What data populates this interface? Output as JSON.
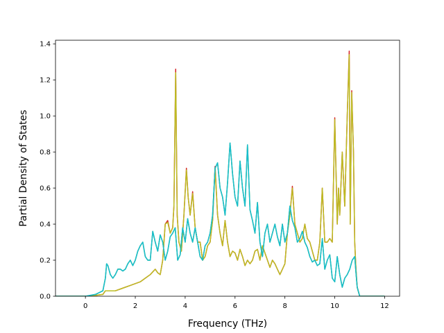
{
  "chart_data": {
    "type": "line",
    "title": "",
    "xlabel": "Frequency (THz)",
    "ylabel": "Partial Density of States",
    "xlim": [
      -1.2,
      12.6
    ],
    "ylim": [
      0.0,
      1.42
    ],
    "xticks": [
      0,
      2,
      4,
      6,
      8,
      10,
      12
    ],
    "yticks": [
      0.0,
      0.2,
      0.4,
      0.6,
      0.8,
      1.0,
      1.2,
      1.4
    ],
    "xtick_labels": [
      "0",
      "2",
      "4",
      "6",
      "8",
      "10",
      "12"
    ],
    "ytick_labels": [
      "0.0",
      "0.2",
      "0.4",
      "0.6",
      "0.8",
      "1.0",
      "1.2",
      "1.4"
    ],
    "grid": false,
    "legend": "none",
    "series": [
      {
        "color": "#d62728",
        "x": [
          -1.2,
          -0.5,
          0.0,
          0.4,
          0.7,
          0.8,
          0.9,
          1.0,
          1.2,
          1.4,
          1.6,
          1.8,
          2.0,
          2.2,
          2.4,
          2.6,
          2.8,
          2.9,
          3.0,
          3.1,
          3.2,
          3.3,
          3.4,
          3.5,
          3.55,
          3.62,
          3.68,
          3.75,
          3.85,
          3.95,
          4.05,
          4.12,
          4.2,
          4.3,
          4.4,
          4.5,
          4.6,
          4.7,
          4.8,
          4.9,
          5.0,
          5.1,
          5.2,
          5.3,
          5.4,
          5.5,
          5.6,
          5.7,
          5.8,
          5.9,
          6.0,
          6.1,
          6.2,
          6.3,
          6.4,
          6.5,
          6.6,
          6.7,
          6.8,
          6.9,
          7.0,
          7.1,
          7.2,
          7.3,
          7.4,
          7.5,
          7.6,
          7.7,
          7.8,
          7.9,
          8.0,
          8.1,
          8.2,
          8.3,
          8.4,
          8.5,
          8.6,
          8.7,
          8.8,
          8.9,
          9.0,
          9.1,
          9.2,
          9.3,
          9.4,
          9.5,
          9.6,
          9.7,
          9.8,
          9.9,
          10.0,
          10.1,
          10.15,
          10.2,
          10.3,
          10.4,
          10.5,
          10.58,
          10.62,
          10.68,
          10.75,
          10.8,
          10.85,
          10.9,
          11.0,
          12.0
        ],
        "values": [
          0.0,
          0.0,
          0.0,
          0.005,
          0.01,
          0.03,
          0.03,
          0.03,
          0.03,
          0.04,
          0.05,
          0.06,
          0.07,
          0.08,
          0.1,
          0.12,
          0.15,
          0.13,
          0.12,
          0.2,
          0.4,
          0.42,
          0.35,
          0.38,
          0.5,
          1.26,
          0.45,
          0.3,
          0.25,
          0.45,
          0.71,
          0.55,
          0.45,
          0.58,
          0.38,
          0.3,
          0.3,
          0.2,
          0.22,
          0.28,
          0.3,
          0.42,
          0.72,
          0.45,
          0.35,
          0.28,
          0.42,
          0.3,
          0.22,
          0.25,
          0.24,
          0.2,
          0.26,
          0.22,
          0.17,
          0.2,
          0.18,
          0.2,
          0.25,
          0.26,
          0.2,
          0.28,
          0.24,
          0.2,
          0.16,
          0.2,
          0.18,
          0.15,
          0.12,
          0.15,
          0.18,
          0.35,
          0.45,
          0.61,
          0.4,
          0.35,
          0.3,
          0.32,
          0.4,
          0.32,
          0.3,
          0.25,
          0.2,
          0.2,
          0.3,
          0.6,
          0.3,
          0.3,
          0.32,
          0.3,
          0.99,
          0.4,
          0.6,
          0.45,
          0.8,
          0.5,
          1.0,
          1.36,
          0.4,
          1.14,
          0.8,
          0.3,
          0.15,
          0.05,
          0.0,
          0.0
        ]
      },
      {
        "color": "#bcbd22",
        "x": [
          -1.2,
          -0.5,
          0.0,
          0.4,
          0.7,
          0.8,
          0.9,
          1.0,
          1.2,
          1.4,
          1.6,
          1.8,
          2.0,
          2.2,
          2.4,
          2.6,
          2.8,
          2.9,
          3.0,
          3.1,
          3.2,
          3.3,
          3.4,
          3.5,
          3.55,
          3.62,
          3.68,
          3.75,
          3.85,
          3.95,
          4.05,
          4.12,
          4.2,
          4.3,
          4.4,
          4.5,
          4.6,
          4.7,
          4.8,
          4.9,
          5.0,
          5.1,
          5.2,
          5.3,
          5.4,
          5.5,
          5.6,
          5.7,
          5.8,
          5.9,
          6.0,
          6.1,
          6.2,
          6.3,
          6.4,
          6.5,
          6.6,
          6.7,
          6.8,
          6.9,
          7.0,
          7.1,
          7.2,
          7.3,
          7.4,
          7.5,
          7.6,
          7.7,
          7.8,
          7.9,
          8.0,
          8.1,
          8.2,
          8.3,
          8.4,
          8.5,
          8.6,
          8.7,
          8.8,
          8.9,
          9.0,
          9.1,
          9.2,
          9.3,
          9.4,
          9.5,
          9.6,
          9.7,
          9.8,
          9.9,
          10.0,
          10.1,
          10.15,
          10.2,
          10.3,
          10.4,
          10.5,
          10.58,
          10.62,
          10.68,
          10.75,
          10.8,
          10.85,
          10.9,
          11.0,
          12.0
        ],
        "values": [
          0.0,
          0.0,
          0.0,
          0.005,
          0.01,
          0.03,
          0.03,
          0.03,
          0.03,
          0.04,
          0.05,
          0.06,
          0.07,
          0.08,
          0.1,
          0.12,
          0.15,
          0.13,
          0.12,
          0.2,
          0.4,
          0.41,
          0.35,
          0.38,
          0.5,
          1.24,
          0.45,
          0.3,
          0.25,
          0.45,
          0.7,
          0.55,
          0.45,
          0.57,
          0.38,
          0.3,
          0.3,
          0.2,
          0.22,
          0.28,
          0.3,
          0.42,
          0.71,
          0.45,
          0.35,
          0.28,
          0.42,
          0.3,
          0.22,
          0.25,
          0.24,
          0.2,
          0.26,
          0.22,
          0.17,
          0.2,
          0.18,
          0.2,
          0.25,
          0.26,
          0.2,
          0.28,
          0.24,
          0.2,
          0.16,
          0.2,
          0.18,
          0.15,
          0.12,
          0.15,
          0.18,
          0.35,
          0.45,
          0.6,
          0.4,
          0.35,
          0.3,
          0.32,
          0.4,
          0.32,
          0.3,
          0.25,
          0.2,
          0.2,
          0.3,
          0.6,
          0.3,
          0.3,
          0.32,
          0.3,
          0.98,
          0.4,
          0.6,
          0.45,
          0.8,
          0.5,
          1.0,
          1.34,
          0.4,
          1.13,
          0.8,
          0.3,
          0.15,
          0.05,
          0.0,
          0.0
        ]
      },
      {
        "color": "#2ca02c",
        "x": [
          -1.2,
          -0.5,
          0.0,
          0.4,
          0.7,
          0.8,
          0.85,
          0.9,
          1.0,
          1.1,
          1.2,
          1.3,
          1.4,
          1.5,
          1.6,
          1.7,
          1.8,
          1.9,
          2.0,
          2.1,
          2.2,
          2.3,
          2.4,
          2.5,
          2.6,
          2.7,
          2.8,
          2.9,
          3.0,
          3.1,
          3.2,
          3.3,
          3.4,
          3.5,
          3.6,
          3.7,
          3.8,
          3.9,
          4.0,
          4.1,
          4.2,
          4.3,
          4.4,
          4.5,
          4.6,
          4.7,
          4.8,
          4.9,
          5.0,
          5.1,
          5.2,
          5.3,
          5.4,
          5.5,
          5.6,
          5.7,
          5.8,
          5.9,
          6.0,
          6.1,
          6.2,
          6.3,
          6.4,
          6.5,
          6.6,
          6.7,
          6.8,
          6.9,
          7.0,
          7.1,
          7.2,
          7.3,
          7.4,
          7.5,
          7.6,
          7.7,
          7.8,
          7.9,
          8.0,
          8.1,
          8.2,
          8.3,
          8.4,
          8.5,
          8.6,
          8.7,
          8.8,
          8.9,
          9.0,
          9.1,
          9.2,
          9.3,
          9.4,
          9.5,
          9.6,
          9.7,
          9.8,
          9.9,
          10.0,
          10.1,
          10.2,
          10.3,
          10.4,
          10.5,
          10.6,
          10.7,
          10.8,
          10.85,
          10.9,
          11.0,
          12.0
        ],
        "values": [
          0.0,
          0.0,
          0.0,
          0.01,
          0.03,
          0.1,
          0.18,
          0.17,
          0.12,
          0.1,
          0.12,
          0.15,
          0.15,
          0.14,
          0.15,
          0.18,
          0.2,
          0.17,
          0.2,
          0.25,
          0.28,
          0.3,
          0.22,
          0.2,
          0.2,
          0.36,
          0.3,
          0.25,
          0.34,
          0.3,
          0.2,
          0.25,
          0.33,
          0.35,
          0.38,
          0.2,
          0.23,
          0.38,
          0.3,
          0.43,
          0.35,
          0.3,
          0.38,
          0.3,
          0.22,
          0.2,
          0.28,
          0.3,
          0.35,
          0.45,
          0.71,
          0.74,
          0.6,
          0.55,
          0.45,
          0.63,
          0.85,
          0.68,
          0.55,
          0.5,
          0.75,
          0.6,
          0.5,
          0.84,
          0.48,
          0.42,
          0.35,
          0.52,
          0.3,
          0.22,
          0.35,
          0.4,
          0.3,
          0.35,
          0.4,
          0.33,
          0.28,
          0.4,
          0.3,
          0.35,
          0.5,
          0.42,
          0.38,
          0.3,
          0.32,
          0.36,
          0.3,
          0.27,
          0.22,
          0.19,
          0.2,
          0.17,
          0.18,
          0.32,
          0.15,
          0.2,
          0.23,
          0.1,
          0.08,
          0.22,
          0.12,
          0.05,
          0.1,
          0.12,
          0.15,
          0.2,
          0.22,
          0.13,
          0.05,
          0.0,
          0.0
        ]
      },
      {
        "color": "#17becf",
        "x": [
          -1.2,
          -0.5,
          0.0,
          0.4,
          0.7,
          0.8,
          0.85,
          0.9,
          1.0,
          1.1,
          1.2,
          1.3,
          1.4,
          1.5,
          1.6,
          1.7,
          1.8,
          1.9,
          2.0,
          2.1,
          2.2,
          2.3,
          2.4,
          2.5,
          2.6,
          2.7,
          2.8,
          2.9,
          3.0,
          3.1,
          3.2,
          3.3,
          3.4,
          3.5,
          3.6,
          3.7,
          3.8,
          3.9,
          4.0,
          4.1,
          4.2,
          4.3,
          4.4,
          4.5,
          4.6,
          4.7,
          4.8,
          4.9,
          5.0,
          5.1,
          5.2,
          5.3,
          5.4,
          5.5,
          5.6,
          5.7,
          5.8,
          5.9,
          6.0,
          6.1,
          6.2,
          6.3,
          6.4,
          6.5,
          6.6,
          6.7,
          6.8,
          6.9,
          7.0,
          7.1,
          7.2,
          7.3,
          7.4,
          7.5,
          7.6,
          7.7,
          7.8,
          7.9,
          8.0,
          8.1,
          8.2,
          8.3,
          8.4,
          8.5,
          8.6,
          8.7,
          8.8,
          8.9,
          9.0,
          9.1,
          9.2,
          9.3,
          9.4,
          9.5,
          9.6,
          9.7,
          9.8,
          9.9,
          10.0,
          10.1,
          10.2,
          10.3,
          10.4,
          10.5,
          10.6,
          10.7,
          10.8,
          10.85,
          10.9,
          11.0,
          12.0
        ],
        "values": [
          0.0,
          0.0,
          0.0,
          0.01,
          0.03,
          0.1,
          0.18,
          0.17,
          0.12,
          0.1,
          0.12,
          0.15,
          0.15,
          0.14,
          0.15,
          0.18,
          0.2,
          0.17,
          0.2,
          0.25,
          0.28,
          0.3,
          0.22,
          0.2,
          0.2,
          0.36,
          0.3,
          0.25,
          0.34,
          0.3,
          0.2,
          0.25,
          0.33,
          0.35,
          0.38,
          0.2,
          0.23,
          0.38,
          0.3,
          0.43,
          0.35,
          0.3,
          0.38,
          0.3,
          0.22,
          0.2,
          0.28,
          0.3,
          0.35,
          0.45,
          0.71,
          0.74,
          0.6,
          0.55,
          0.45,
          0.63,
          0.85,
          0.68,
          0.55,
          0.5,
          0.75,
          0.6,
          0.5,
          0.84,
          0.48,
          0.42,
          0.35,
          0.52,
          0.3,
          0.22,
          0.35,
          0.4,
          0.3,
          0.35,
          0.4,
          0.33,
          0.28,
          0.4,
          0.3,
          0.35,
          0.5,
          0.42,
          0.38,
          0.3,
          0.32,
          0.36,
          0.3,
          0.27,
          0.22,
          0.19,
          0.2,
          0.17,
          0.18,
          0.32,
          0.15,
          0.2,
          0.23,
          0.1,
          0.08,
          0.22,
          0.12,
          0.05,
          0.1,
          0.12,
          0.15,
          0.2,
          0.22,
          0.13,
          0.05,
          0.0,
          0.0
        ]
      }
    ]
  }
}
